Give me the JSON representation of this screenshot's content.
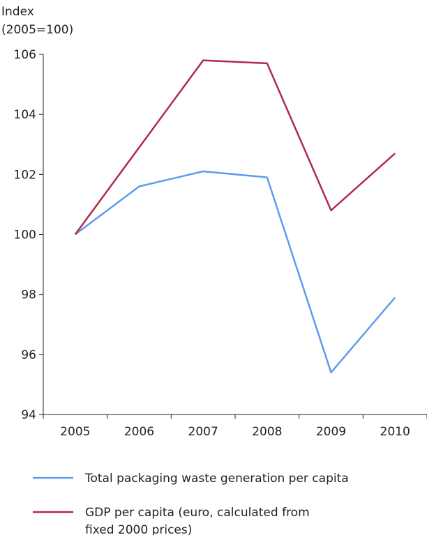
{
  "chart_data": {
    "type": "line",
    "ylabel_lines": [
      "Index",
      "(2005=100)"
    ],
    "categories": [
      "2005",
      "2006",
      "2007",
      "2008",
      "2009",
      "2010"
    ],
    "ylim": [
      94,
      106
    ],
    "yticks": [
      94,
      96,
      98,
      100,
      102,
      104,
      106
    ],
    "grid": false,
    "legend_position": "bottom",
    "series": [
      {
        "name": "Total packaging waste generation per capita",
        "legend_lines": [
          "Total packaging waste generation per capita"
        ],
        "color": "#5b9ded",
        "values": [
          100.0,
          101.6,
          102.1,
          101.9,
          95.4,
          97.9
        ]
      },
      {
        "name": "GDP per capita (euro, calculated from fixed 2000 prices)",
        "legend_lines": [
          "GDP per capita (euro, calculated from",
          "fixed 2000 prices)"
        ],
        "color": "#b02a48",
        "values": [
          100.0,
          102.9,
          105.8,
          105.7,
          100.8,
          102.7
        ]
      }
    ]
  }
}
